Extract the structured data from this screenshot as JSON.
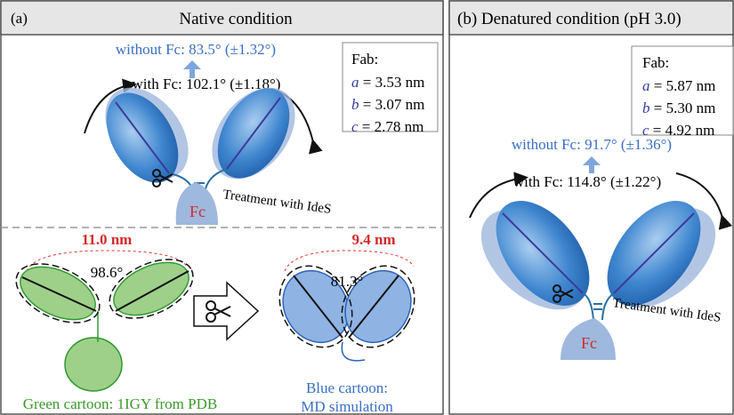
{
  "panel_a": {
    "label": "(a)",
    "title": "Native condition",
    "without_fc": "without Fc: 83.5° (±1.32°)",
    "with_fc": "with Fc: 102.1° (±1.18°)",
    "fab": {
      "title": "Fab:",
      "rows": [
        {
          "var": "a",
          "text": " = 3.53 nm"
        },
        {
          "var": "b",
          "text": " = 3.07 nm"
        },
        {
          "var": "c",
          "text": " = 2.78 nm"
        }
      ]
    },
    "fc": "Fc",
    "treatment": "Treatment with IdeS",
    "pdb": {
      "distance": "11.0 nm",
      "angle": "98.6°",
      "caption": "Green cartoon: 1IGY from PDB"
    },
    "md": {
      "distance": "9.4 nm",
      "angle": "81.3°",
      "caption": [
        "Blue cartoon:",
        "MD simulation"
      ]
    }
  },
  "panel_b": {
    "title": "(b) Denatured condition (pH 3.0)",
    "fab": {
      "title": "Fab:",
      "rows": [
        {
          "var": "a",
          "text": " = 5.87 nm"
        },
        {
          "var": "b",
          "text": " = 5.30 nm"
        },
        {
          "var": "c",
          "text": " = 4.92 nm"
        }
      ]
    },
    "without_fc": "without Fc: 91.7° (±1.36°)",
    "with_fc": "with Fc: 114.8° (±1.22°)",
    "fc": "Fc",
    "treatment": "Treatment with IdeS"
  }
}
